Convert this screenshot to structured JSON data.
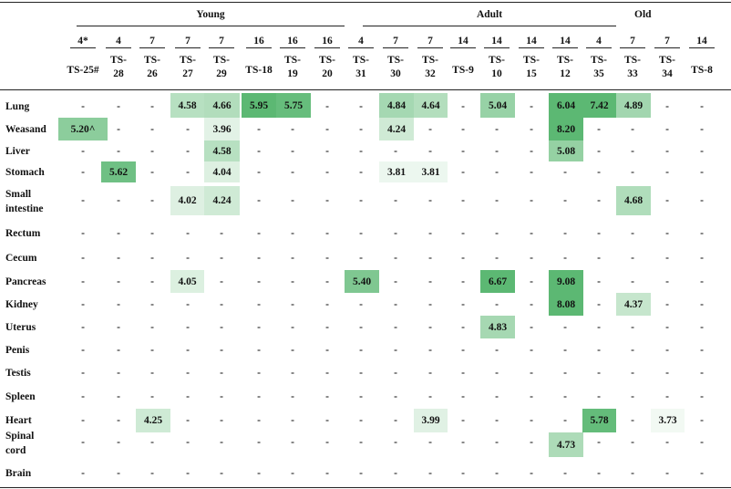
{
  "groups": [
    {
      "label": "Young",
      "start": 0,
      "end": 7
    },
    {
      "label": "Adult",
      "start": 8,
      "end": 15
    },
    {
      "label": "Old",
      "start": 16,
      "end": 19
    }
  ],
  "columns": [
    {
      "age": "4*",
      "id": "TS-25#"
    },
    {
      "age": "4",
      "id": "TS-28"
    },
    {
      "age": "7",
      "id": "TS-26"
    },
    {
      "age": "7",
      "id": "TS-27"
    },
    {
      "age": "7",
      "id": "TS-29"
    },
    {
      "age": "16",
      "id": "TS-18"
    },
    {
      "age": "16",
      "id": "TS-19"
    },
    {
      "age": "16",
      "id": "TS-20"
    },
    {
      "age": "4",
      "id": "TS-31"
    },
    {
      "age": "7",
      "id": "TS-30"
    },
    {
      "age": "7",
      "id": "TS-32"
    },
    {
      "age": "14",
      "id": "TS-9"
    },
    {
      "age": "14",
      "id": "TS-10"
    },
    {
      "age": "14",
      "id": "TS-15"
    },
    {
      "age": "14",
      "id": "TS-12"
    },
    {
      "age": "4",
      "id": "TS-35"
    },
    {
      "age": "7",
      "id": "TS-33"
    },
    {
      "age": "7",
      "id": "TS-34"
    },
    {
      "age": "14",
      "id": "TS-8"
    }
  ],
  "rows": [
    {
      "label": "Lung",
      "values": [
        "-",
        "-",
        "-",
        "4.58",
        "4.66",
        "5.95",
        "5.75",
        "-",
        "-",
        "4.84",
        "4.64",
        "-",
        "5.04",
        "-",
        "6.04",
        "7.42",
        "4.89",
        "-",
        "-"
      ]
    },
    {
      "label": "Weasand",
      "values": [
        "5.20^",
        "-",
        "-",
        "-",
        "3.96",
        "-",
        "-",
        "-",
        "-",
        "4.24",
        "-",
        "-",
        "-",
        "-",
        "8.20",
        "-",
        "-",
        "-",
        "-"
      ]
    },
    {
      "label": "Liver",
      "values": [
        "-",
        "-",
        "-",
        "-",
        "4.58",
        "-",
        "-",
        "-",
        "-",
        "-",
        "-",
        "-",
        "-",
        "-",
        "5.08",
        "-",
        "-",
        "-",
        "-"
      ]
    },
    {
      "label": "Stomach",
      "values": [
        "-",
        "5.62",
        "-",
        "-",
        "4.04",
        "-",
        "-",
        "-",
        "-",
        "3.81",
        "3.81",
        "-",
        "-",
        "-",
        "-",
        "-",
        "-",
        "-",
        "-"
      ]
    },
    {
      "label": "Small intestine",
      "values": [
        "-",
        "-",
        "-",
        "4.02",
        "4.24",
        "-",
        "-",
        "-",
        "-",
        "-",
        "-",
        "-",
        "-",
        "-",
        "-",
        "-",
        "4.68",
        "-",
        "-"
      ]
    },
    {
      "label": "Rectum",
      "values": [
        "-",
        "-",
        "-",
        "-",
        "-",
        "-",
        "-",
        "-",
        "-",
        "-",
        "-",
        "-",
        "-",
        "-",
        "-",
        "-",
        "-",
        "-",
        "-"
      ]
    },
    {
      "label": "Cecum",
      "values": [
        "-",
        "-",
        "-",
        "-",
        "-",
        "-",
        "-",
        "-",
        "-",
        "-",
        "-",
        "-",
        "-",
        "-",
        "-",
        "-",
        "-",
        "-",
        "-"
      ]
    },
    {
      "label": "Pancreas",
      "values": [
        "-",
        "-",
        "-",
        "4.05",
        "-",
        "-",
        "-",
        "-",
        "5.40",
        "-",
        "-",
        "-",
        "6.67",
        "-",
        "9.08",
        "-",
        "-",
        "-",
        "-"
      ]
    },
    {
      "label": "Kidney",
      "values": [
        "-",
        "-",
        "-",
        "-",
        "-",
        "-",
        "-",
        "-",
        "-",
        "-",
        "-",
        "-",
        "-",
        "-",
        "8.08",
        "-",
        "4.37",
        "-",
        "-"
      ]
    },
    {
      "label": "Uterus",
      "values": [
        "-",
        "-",
        "-",
        "-",
        "-",
        "-",
        "-",
        "-",
        "-",
        "-",
        "-",
        "-",
        "4.83",
        "-",
        "-",
        "-",
        "-",
        "-",
        "-"
      ]
    },
    {
      "label": "Penis",
      "values": [
        "-",
        "-",
        "-",
        "-",
        "-",
        "-",
        "-",
        "-",
        "-",
        "-",
        "-",
        "-",
        "-",
        "-",
        "-",
        "-",
        "-",
        "-",
        "-"
      ]
    },
    {
      "label": "Testis",
      "values": [
        "-",
        "-",
        "-",
        "-",
        "-",
        "-",
        "-",
        "-",
        "-",
        "-",
        "-",
        "-",
        "-",
        "-",
        "-",
        "-",
        "-",
        "-",
        "-"
      ]
    },
    {
      "label": "Spleen",
      "values": [
        "-",
        "-",
        "-",
        "-",
        "-",
        "-",
        "-",
        "-",
        "-",
        "-",
        "-",
        "-",
        "-",
        "-",
        "-",
        "-",
        "-",
        "-",
        "-"
      ]
    },
    {
      "label": "Heart",
      "values": [
        "-",
        "-",
        "4.25",
        "-",
        "-",
        "-",
        "-",
        "-",
        "-",
        "-",
        "3.99",
        "-",
        "-",
        "-",
        "-",
        "5.78",
        "-",
        "3.73",
        "-"
      ]
    },
    {
      "label": "Spinal cord",
      "values": [
        "-",
        "-",
        "-",
        "-",
        "-",
        "-",
        "-",
        "-",
        "-",
        "-",
        "-",
        "-",
        "-",
        "-",
        "4.73",
        "-",
        "-",
        "-",
        "-"
      ]
    },
    {
      "label": "Brain",
      "values": [
        "-",
        "-",
        "-",
        "-",
        "-",
        "-",
        "-",
        "-",
        "-",
        "-",
        "-",
        "-",
        "-",
        "-",
        "-",
        "-",
        "-",
        "-",
        "-"
      ]
    }
  ],
  "heat_colors": {
    "low": "#f4faf5",
    "high": "#5cb873"
  }
}
